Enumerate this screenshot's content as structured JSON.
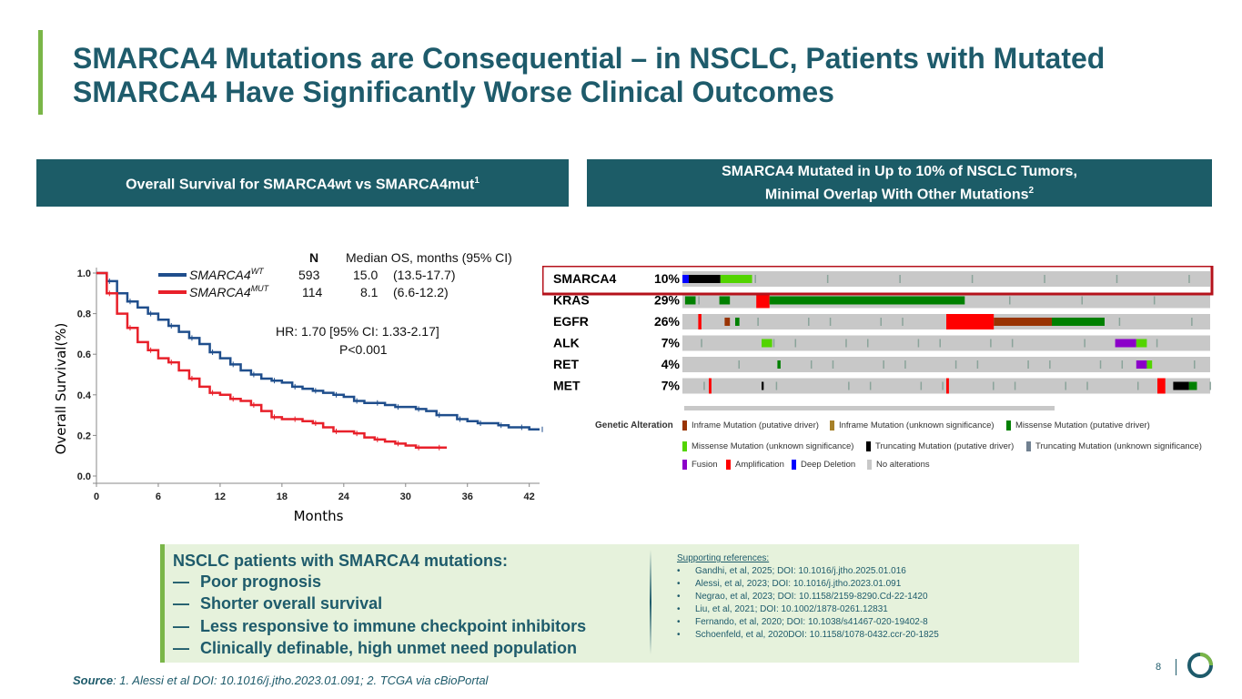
{
  "title": {
    "line1": "SMARCA4 Mutations are Consequential – in NSCLC, Patients with Mutated",
    "line2": "SMARCA4 Have Significantly Worse Clinical Outcomes"
  },
  "left_header": {
    "text": "Overall Survival for SMARCA4wt vs SMARCA4mut",
    "sup": "1"
  },
  "right_header": {
    "line1": "SMARCA4 Mutated in Up to 10% of NSCLC Tumors,",
    "line2": "Minimal Overlap With Other Mutations",
    "sup": "2"
  },
  "colors": {
    "brand": "#1c5c67",
    "accent": "#7ab648",
    "wt": "#1f4e8c",
    "mut": "#e8202a"
  },
  "chart_data": {
    "type": "line",
    "xlabel": "Months",
    "ylabel": "Overall Survival(%)",
    "xticks": [
      "0",
      "6",
      "12",
      "18",
      "24",
      "30",
      "36",
      "42"
    ],
    "yticks": [
      "0.0",
      "0.2",
      "0.4",
      "0.6",
      "0.8",
      "1.0"
    ],
    "xlim": [
      0,
      43
    ],
    "ylim": [
      0,
      1.0
    ],
    "legend_header": {
      "n": "N",
      "median": "Median OS, months (95% CI)"
    },
    "series": [
      {
        "name": "SMARCA4",
        "sup": "WT",
        "n": "593",
        "median": "15.0",
        "ci": "(13.5-17.7)",
        "x": [
          0,
          1,
          2,
          3,
          4,
          5,
          6,
          7,
          8,
          9,
          10,
          11,
          12,
          13,
          14,
          15,
          16,
          17,
          18,
          19,
          20,
          21,
          22,
          23,
          24,
          25,
          26,
          27,
          28,
          29,
          30,
          31,
          32,
          33,
          34,
          35,
          36,
          37,
          38,
          39,
          40,
          41,
          42,
          43
        ],
        "y": [
          1.0,
          0.96,
          0.9,
          0.86,
          0.83,
          0.8,
          0.77,
          0.74,
          0.71,
          0.68,
          0.65,
          0.61,
          0.58,
          0.55,
          0.52,
          0.5,
          0.48,
          0.47,
          0.46,
          0.44,
          0.43,
          0.42,
          0.41,
          0.4,
          0.39,
          0.37,
          0.36,
          0.36,
          0.35,
          0.34,
          0.34,
          0.33,
          0.32,
          0.3,
          0.3,
          0.28,
          0.27,
          0.26,
          0.26,
          0.25,
          0.24,
          0.24,
          0.23,
          0.23
        ]
      },
      {
        "name": "SMARCA4",
        "sup": "MUT",
        "n": "114",
        "median": "8.1",
        "ci": "(6.6-12.2)",
        "x": [
          0,
          1,
          2,
          3,
          4,
          5,
          6,
          7,
          8,
          9,
          10,
          11,
          12,
          13,
          14,
          15,
          16,
          17,
          18,
          19,
          20,
          21,
          22,
          23,
          24,
          25,
          26,
          27,
          28,
          29,
          30,
          31,
          32,
          33,
          34
        ],
        "y": [
          1.0,
          0.9,
          0.8,
          0.73,
          0.66,
          0.62,
          0.58,
          0.56,
          0.52,
          0.48,
          0.44,
          0.41,
          0.4,
          0.38,
          0.37,
          0.35,
          0.32,
          0.29,
          0.28,
          0.28,
          0.27,
          0.26,
          0.24,
          0.22,
          0.22,
          0.21,
          0.19,
          0.18,
          0.17,
          0.16,
          0.15,
          0.14,
          0.14,
          0.14,
          0.14
        ]
      }
    ],
    "annotation_line1": "HR: 1.70 [95% CI: 1.33-2.17]",
    "annotation_line2": "P<0.001"
  },
  "oncoprint": {
    "genes": [
      {
        "name": "SMARCA4",
        "pct": "10%"
      },
      {
        "name": "KRAS",
        "pct": "29%"
      },
      {
        "name": "EGFR",
        "pct": "26%"
      },
      {
        "name": "ALK",
        "pct": "7%"
      },
      {
        "name": "RET",
        "pct": "4%"
      },
      {
        "name": "MET",
        "pct": "7%"
      }
    ],
    "legend_title": "Genetic Alteration",
    "legend": [
      {
        "label": "Inframe Mutation (putative driver)",
        "color": "#993404"
      },
      {
        "label": "Inframe Mutation (unknown significance)",
        "color": "#a68028"
      },
      {
        "label": "Missense Mutation (putative driver)",
        "color": "#008000"
      },
      {
        "label": "Missense Mutation (unknown significance)",
        "color": "#53d400"
      },
      {
        "label": "Truncating Mutation (putative driver)",
        "color": "#000000"
      },
      {
        "label": "Truncating Mutation (unknown significance)",
        "color": "#708090"
      },
      {
        "label": "Fusion",
        "color": "#8b00c9"
      },
      {
        "label": "Amplification",
        "color": "#ff0000"
      },
      {
        "label": "Deep Deletion",
        "color": "#0000ff"
      },
      {
        "label": "No alterations",
        "color": "#c8c8c8"
      }
    ]
  },
  "callout": {
    "title": "NSCLC patients with SMARCA4 mutations:",
    "dash": "—",
    "bullets": [
      "Poor prognosis",
      "Shorter overall survival",
      "Less responsive to immune checkpoint inhibitors",
      "Clinically definable, high unmet need population"
    ]
  },
  "references": {
    "title": "Supporting references:",
    "bullet": "•",
    "items": [
      "Gandhi, et al, 2025; DOI: 10.1016/j.jtho.2025.01.016",
      "Alessi, et al, 2023; DOI: 10.1016/j.jtho.2023.01.091",
      "Negrao, et al, 2023; DOI: 10.1158/2159-8290.Cd-22-1420",
      "Liu, et al, 2021; DOI: 10.1002/1878-0261.12831",
      "Fernando, et al, 2020; DOI: 10.1038/s41467-020-19402-8",
      "Schoenfeld, et al, 2020DOI: 10.1158/1078-0432.ccr-20-1825"
    ]
  },
  "source": {
    "label": "Source",
    "text": ": 1. Alessi et al DOI: 10.1016/j.jtho.2023.01.091; 2. TCGA via cBioPortal"
  },
  "page_number": "8"
}
